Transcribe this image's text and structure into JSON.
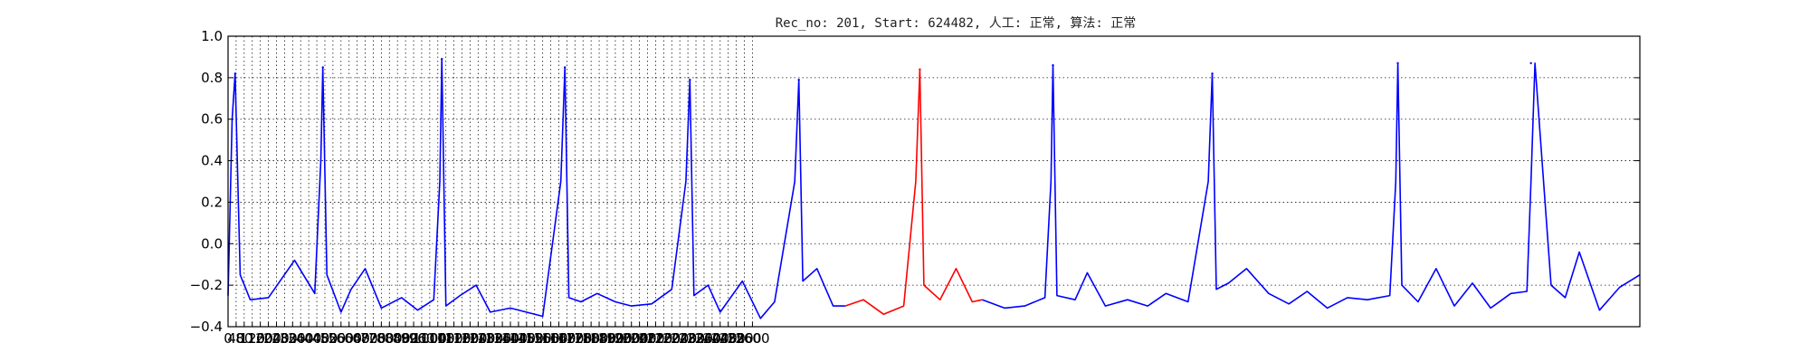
{
  "chart_data": {
    "type": "line",
    "title": "Rec_no: 201, Start: 624482, 人工: 正常, 算法: 正常",
    "xlabel": "",
    "ylabel": "",
    "xlim": [
      0,
      7000
    ],
    "ylim": [
      -0.4,
      1.0
    ],
    "grid": true,
    "legend": "none",
    "y_ticks": [
      -0.4,
      -0.2,
      0.0,
      0.2,
      0.4,
      0.6,
      0.8,
      1.0
    ],
    "y_tick_labels": [
      "−0.4",
      "−0.2",
      "0.0",
      "0.2",
      "0.4",
      "0.6",
      "0.8",
      "1.0"
    ],
    "x_ticks": [
      0,
      40,
      80,
      120,
      160,
      200,
      240,
      280,
      320,
      360,
      400,
      440,
      480,
      520,
      560,
      600,
      640,
      680,
      720,
      760,
      800,
      840,
      880,
      920,
      960,
      1000,
      1040,
      1080,
      1120,
      1160,
      1200,
      1240,
      1280,
      1320,
      1360,
      1400,
      1440,
      1480,
      1520,
      1560,
      1600,
      1640,
      1680,
      1720,
      1760,
      1800,
      1840,
      1880,
      1920,
      1960,
      2000,
      2040,
      2080,
      2120,
      2160,
      2200,
      2240,
      2280,
      2320,
      2360,
      2400,
      2440,
      2480,
      2520,
      2560,
      2600
    ],
    "x_tick_labels": [
      "0",
      "40",
      "80",
      "120",
      "160",
      "200",
      "240",
      "280",
      "320",
      "360",
      "400",
      "440",
      "480",
      "520",
      "560",
      "600",
      "640",
      "680",
      "720",
      "760",
      "800",
      "840",
      "880",
      "920",
      "960",
      "1000",
      "1040",
      "1080",
      "1120",
      "1160",
      "1200",
      "1240",
      "1280",
      "1320",
      "1360",
      "1400",
      "1440",
      "1480",
      "1520",
      "1560",
      "1600",
      "1640",
      "1680",
      "1720",
      "1760",
      "1800",
      "1840",
      "1880",
      "1920",
      "1960",
      "2000",
      "2040",
      "2080",
      "2120",
      "2160",
      "2200",
      "2240",
      "2280",
      "2320",
      "2360",
      "2400",
      "2440",
      "2480",
      "2520",
      "2560",
      "2600"
    ],
    "colors": {
      "normal": "#0000ff",
      "highlight": "#ff0000"
    },
    "beat_peaks": [
      {
        "x": 35,
        "y": 0.82
      },
      {
        "x": 470,
        "y": 0.85
      },
      {
        "x": 1060,
        "y": 0.89
      },
      {
        "x": 1670,
        "y": 0.85
      },
      {
        "x": 2290,
        "y": 0.79
      },
      {
        "x": 2830,
        "y": 0.79
      },
      {
        "x": 3430,
        "y": 0.84
      },
      {
        "x": 4090,
        "y": 0.86
      },
      {
        "x": 4880,
        "y": 0.82
      },
      {
        "x": 5800,
        "y": 0.87
      },
      {
        "x": 6460,
        "y": 0.87
      }
    ],
    "highlight_range": [
      3150,
      3740
    ],
    "series": [
      {
        "name": "",
        "x": [
          0,
          20,
          35,
          60,
          110,
          200,
          330,
          430,
          460,
          470,
          490,
          560,
          610,
          680,
          760,
          860,
          940,
          1020,
          1050,
          1060,
          1080,
          1150,
          1230,
          1300,
          1400,
          1560,
          1650,
          1670,
          1690,
          1750,
          1830,
          1920,
          2000,
          2100,
          2200,
          2270,
          2290,
          2310,
          2380,
          2440,
          2550,
          2640,
          2710,
          2810,
          2830,
          2850,
          2920,
          3000,
          3060,
          3150,
          3250,
          3350,
          3410,
          3430,
          3450,
          3530,
          3610,
          3690,
          3740,
          3850,
          3950,
          4050,
          4080,
          4090,
          4110,
          4200,
          4260,
          4350,
          4460,
          4560,
          4650,
          4760,
          4860,
          4880,
          4900,
          4960,
          5050,
          5160,
          5260,
          5350,
          5450,
          5550,
          5650,
          5760,
          5790,
          5800,
          5820,
          5900,
          5990,
          6080,
          6170,
          6260,
          6360,
          6440,
          6460,
          6480,
          6560,
          6630,
          6700,
          6800,
          6900,
          7000
        ],
        "y": [
          -0.25,
          0.6,
          0.82,
          -0.15,
          -0.27,
          -0.26,
          -0.08,
          -0.24,
          0.4,
          0.85,
          -0.15,
          -0.33,
          -0.22,
          -0.12,
          -0.31,
          -0.26,
          -0.32,
          -0.27,
          0.3,
          0.89,
          -0.3,
          -0.25,
          -0.2,
          -0.33,
          -0.31,
          -0.35,
          0.3,
          0.85,
          -0.26,
          -0.28,
          -0.24,
          -0.28,
          -0.3,
          -0.29,
          -0.22,
          0.3,
          0.79,
          -0.25,
          -0.2,
          -0.33,
          -0.18,
          -0.36,
          -0.28,
          0.3,
          0.79,
          -0.18,
          -0.12,
          -0.3,
          -0.3,
          -0.27,
          -0.34,
          -0.3,
          0.3,
          0.84,
          -0.2,
          -0.27,
          -0.12,
          -0.28,
          -0.27,
          -0.31,
          -0.3,
          -0.26,
          0.3,
          0.86,
          -0.25,
          -0.27,
          -0.14,
          -0.3,
          -0.27,
          -0.3,
          -0.24,
          -0.28,
          0.3,
          0.82,
          -0.22,
          -0.19,
          -0.12,
          -0.24,
          -0.29,
          -0.23,
          -0.31,
          -0.26,
          -0.27,
          -0.25,
          0.3,
          0.87,
          -0.2,
          -0.28,
          -0.12,
          -0.3,
          -0.19,
          -0.31,
          -0.24,
          -0.23,
          0.3,
          0.87,
          -0.2,
          -0.26,
          -0.04,
          -0.32,
          -0.21,
          -0.15
        ]
      }
    ]
  }
}
